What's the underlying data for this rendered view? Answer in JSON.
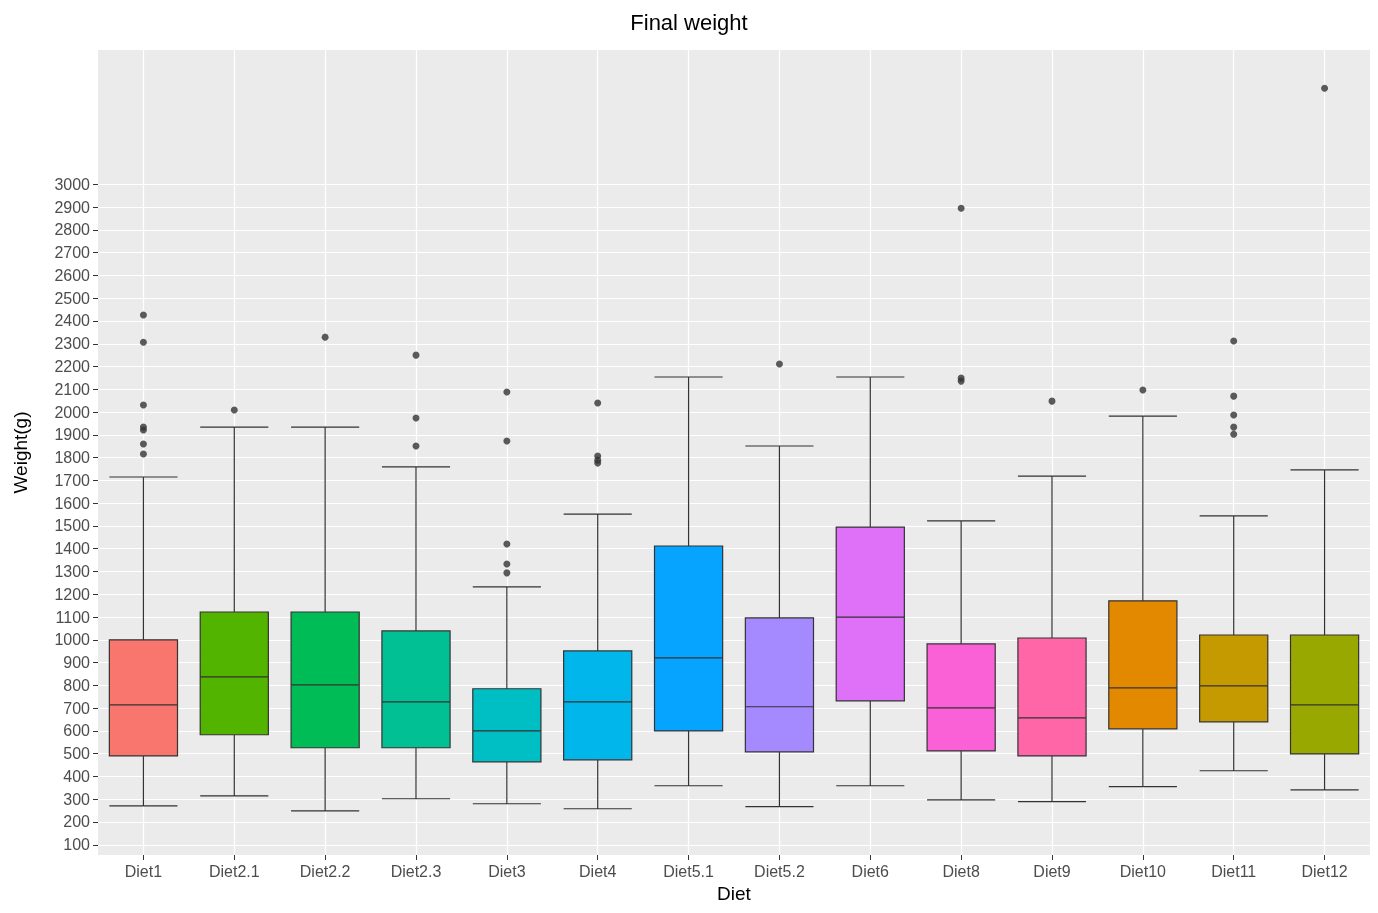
{
  "chart_data": {
    "type": "box",
    "title": "Final weight",
    "xlabel": "Diet",
    "ylabel": "Weight(g)",
    "categories": [
      "Diet1",
      "Diet2.1",
      "Diet2.2",
      "Diet2.3",
      "Diet3",
      "Diet4",
      "Diet5.1",
      "Diet5.2",
      "Diet6",
      "Diet8",
      "Diet9",
      "Diet10",
      "Diet11",
      "Diet12"
    ],
    "colors": [
      "#f8766d",
      "#53b400",
      "#00bc56",
      "#00c094",
      "#00bfc4",
      "#00b6eb",
      "#06a4ff",
      "#a58aff",
      "#df70f8",
      "#fb61d7",
      "#ff66a8",
      "#e38900",
      "#c49a00",
      "#99a800"
    ],
    "boxes": [
      {
        "low": 271,
        "q1": 490,
        "median": 714,
        "q3": 1000,
        "high": 1715,
        "outliers": [
          2426,
          2307,
          2031,
          1934,
          1921,
          1860,
          1816
        ]
      },
      {
        "low": 315,
        "q1": 583,
        "median": 837,
        "q3": 1122,
        "high": 1934,
        "outliers": [
          2009
        ]
      },
      {
        "low": 249,
        "q1": 526,
        "median": 802,
        "q3": 1122,
        "high": 1934,
        "outliers": [
          2329
        ]
      },
      {
        "low": 302,
        "q1": 526,
        "median": 727,
        "q3": 1039,
        "high": 1759,
        "outliers": [
          2250,
          1974,
          1851
        ]
      },
      {
        "low": 280,
        "q1": 464,
        "median": 600,
        "q3": 785,
        "high": 1232,
        "outliers": [
          2088,
          1873,
          1421,
          1333,
          1294
        ]
      },
      {
        "low": 258,
        "q1": 473,
        "median": 727,
        "q3": 951,
        "high": 1552,
        "outliers": [
          2040,
          1807,
          1789,
          1776
        ]
      },
      {
        "low": 359,
        "q1": 600,
        "median": 921,
        "q3": 1412,
        "high": 2154
      },
      {
        "low": 267,
        "q1": 508,
        "median": 706,
        "q3": 1096,
        "high": 1851,
        "outliers": [
          2211
        ]
      },
      {
        "low": 359,
        "q1": 732,
        "median": 1100,
        "q3": 1495,
        "high": 2154
      },
      {
        "low": 297,
        "q1": 512,
        "median": 701,
        "q3": 982,
        "high": 1522,
        "outliers": [
          2895,
          2149,
          2136
        ]
      },
      {
        "low": 289,
        "q1": 490,
        "median": 657,
        "q3": 1008,
        "high": 1719,
        "outliers": [
          2048
        ]
      },
      {
        "low": 355,
        "q1": 609,
        "median": 789,
        "q3": 1171,
        "high": 1982,
        "outliers": [
          2097
        ]
      },
      {
        "low": 425,
        "q1": 640,
        "median": 798,
        "q3": 1021,
        "high": 1544,
        "outliers": [
          2312,
          2070,
          1987,
          1934,
          1903
        ]
      },
      {
        "low": 341,
        "q1": 499,
        "median": 714,
        "q3": 1021,
        "high": 1746,
        "outliers": [
          3422
        ]
      }
    ],
    "ylim": [
      55,
      3590
    ],
    "yticks": [
      100,
      200,
      300,
      400,
      500,
      600,
      700,
      800,
      900,
      1000,
      1100,
      1200,
      1300,
      1400,
      1500,
      1600,
      1700,
      1800,
      1900,
      2000,
      2100,
      2200,
      2300,
      2400,
      2500,
      2600,
      2700,
      2800,
      2900,
      3000
    ],
    "grid": true
  }
}
